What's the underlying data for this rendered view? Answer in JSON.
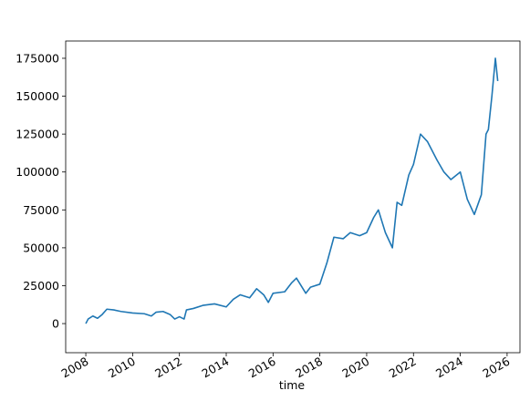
{
  "chart_data": {
    "type": "line",
    "xlabel": "time",
    "x": [
      2008.0,
      2008.1,
      2008.3,
      2008.5,
      2008.7,
      2008.9,
      2009.2,
      2009.5,
      2010.0,
      2010.5,
      2010.8,
      2011.0,
      2011.3,
      2011.6,
      2011.8,
      2012.0,
      2012.2,
      2012.3,
      2012.6,
      2013.0,
      2013.5,
      2014.0,
      2014.3,
      2014.6,
      2015.0,
      2015.3,
      2015.6,
      2015.8,
      2016.0,
      2016.5,
      2016.8,
      2017.0,
      2017.4,
      2017.6,
      2018.0,
      2018.3,
      2018.6,
      2019.0,
      2019.3,
      2019.7,
      2020.0,
      2020.3,
      2020.5,
      2020.8,
      2021.1,
      2021.3,
      2021.5,
      2021.8,
      2022.0,
      2022.3,
      2022.6,
      2023.0,
      2023.3,
      2023.6,
      2024.0,
      2024.3,
      2024.6,
      2024.9,
      2025.1,
      2025.2,
      2025.35,
      2025.5,
      2025.6
    ],
    "series": [
      {
        "color": "#1f77b4",
        "values": [
          0,
          3000,
          5000,
          3500,
          6000,
          9500,
          9000,
          8000,
          7000,
          6500,
          5000,
          7500,
          8000,
          6000,
          3000,
          4500,
          3000,
          9000,
          10000,
          12000,
          13000,
          11000,
          16000,
          19000,
          17000,
          23000,
          19000,
          14000,
          20000,
          21000,
          27000,
          30000,
          20000,
          24000,
          26000,
          40000,
          57000,
          56000,
          60000,
          58000,
          60000,
          70000,
          75000,
          60000,
          50000,
          80000,
          78000,
          98000,
          105000,
          125000,
          120000,
          108000,
          100000,
          95000,
          100000,
          82000,
          72000,
          85000,
          125000,
          128000,
          150000,
          175000,
          160000
        ]
      }
    ],
    "xlim": [
      2007.14,
      2026.55
    ],
    "xticks": [
      2008,
      2010,
      2012,
      2014,
      2016,
      2018,
      2020,
      2022,
      2024,
      2026
    ],
    "ylim": [
      -19200,
      186400
    ],
    "yticks": [
      0,
      25000,
      50000,
      75000,
      100000,
      125000,
      150000,
      175000
    ],
    "grid": false
  }
}
